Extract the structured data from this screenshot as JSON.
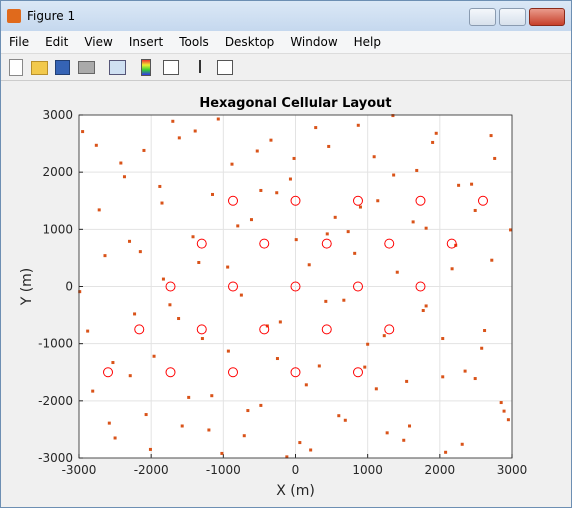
{
  "window": {
    "title": "Figure 1",
    "menu": [
      "File",
      "Edit",
      "View",
      "Insert",
      "Tools",
      "Desktop",
      "Window",
      "Help"
    ]
  },
  "chart_data": {
    "type": "scatter",
    "title": "Hexagonal Cellular Layout",
    "xlabel": "X (m)",
    "ylabel": "Y (m)",
    "xlim": [
      -3000,
      3000
    ],
    "ylim": [
      -3000,
      3000
    ],
    "xticks": [
      -3000,
      -2000,
      -1000,
      0,
      1000,
      2000,
      3000
    ],
    "yticks": [
      -3000,
      -2000,
      -1000,
      0,
      1000,
      2000,
      3000
    ],
    "grid": true,
    "series": [
      {
        "color": "#d95319",
        "marker": "square",
        "x": [
          -2950,
          -2810,
          -2640,
          -2500,
          -2370,
          -2230,
          -2100,
          -1960,
          -1830,
          -1700,
          -1570,
          -1420,
          -1290,
          -1150,
          -1020,
          -880,
          -750,
          -610,
          -480,
          -340,
          -210,
          -70,
          60,
          190,
          330,
          460,
          600,
          730,
          870,
          1000,
          1140,
          1270,
          1410,
          1540,
          1680,
          1810,
          1950,
          2080,
          2220,
          2350,
          2490,
          2620,
          2760,
          2890,
          -2880,
          -2720,
          -2580,
          -2420,
          -2290,
          -2150,
          -2010,
          -1880,
          -1740,
          -1610,
          -1480,
          -1340,
          -1200,
          -1070,
          -930,
          -800,
          -660,
          -530,
          -390,
          -260,
          -120,
          10,
          150,
          280,
          420,
          550,
          690,
          820,
          960,
          1090,
          1230,
          1360,
          1500,
          1630,
          1770,
          1900,
          2040,
          2170,
          2310,
          2440,
          2580,
          2710,
          2850,
          2980,
          -2990,
          -2760,
          -2530,
          -2300,
          -2070,
          -1850,
          -1620,
          -1390,
          -1160,
          -940,
          -710,
          -480,
          -250,
          -20,
          210,
          440,
          670,
          900,
          1120,
          1350,
          1580,
          1810,
          2040,
          2260,
          2490,
          2720,
          2950
        ],
        "values": [
          2710,
          -1830,
          540,
          -2650,
          1920,
          -480,
          2380,
          -1220,
          130,
          2890,
          -2440,
          870,
          -910,
          1610,
          -2920,
          2140,
          -150,
          1170,
          -2080,
          2560,
          -620,
          1880,
          -2730,
          380,
          -1390,
          2450,
          -2260,
          960,
          2820,
          -1010,
          1500,
          -2560,
          250,
          -1660,
          2030,
          -340,
          2680,
          -2900,
          720,
          -1480,
          1330,
          -770,
          2240,
          -2180,
          -780,
          1340,
          -2390,
          2160,
          -1560,
          610,
          -2850,
          1750,
          -320,
          2600,
          -1940,
          420,
          -2510,
          2930,
          -1130,
          1060,
          -2170,
          2370,
          -690,
          1640,
          -2980,
          820,
          -1720,
          2780,
          -260,
          1210,
          -2340,
          580,
          -1410,
          2270,
          -860,
          1950,
          -2690,
          1130,
          -420,
          2520,
          -1580,
          310,
          -2760,
          1790,
          -1080,
          2640,
          -2030,
          990,
          -90,
          2470,
          -1330,
          790,
          -2240,
          1460,
          -560,
          2720,
          -1910,
          340,
          -2610,
          1680,
          -1260,
          2240,
          -2860,
          920,
          -240,
          1390,
          -1790,
          2990,
          -2440,
          1020,
          -910,
          1770,
          -1610,
          460,
          -2330
        ]
      },
      {
        "color": "#ff0000",
        "marker": "circle",
        "x": [
          -866,
          0,
          866,
          1732,
          2598,
          -1299,
          -433,
          433,
          1299,
          2165,
          -1732,
          -866,
          0,
          866,
          1732,
          -2165,
          -1299,
          -433,
          433,
          1299,
          -2598,
          -1732,
          -866,
          0,
          866
        ],
        "values": [
          1500,
          1500,
          1500,
          1500,
          1500,
          750,
          750,
          750,
          750,
          750,
          0,
          0,
          0,
          0,
          0,
          -750,
          -750,
          -750,
          -750,
          -750,
          -1500,
          -1500,
          -1500,
          -1500,
          -1500
        ]
      }
    ]
  }
}
